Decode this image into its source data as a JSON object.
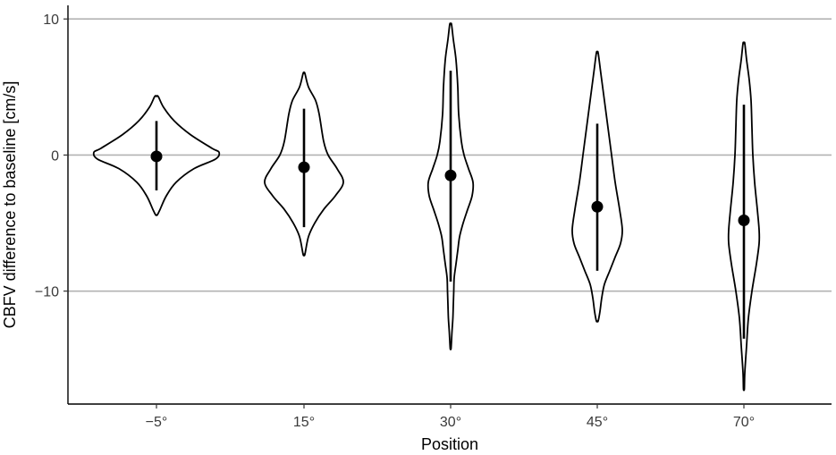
{
  "chart_data": {
    "type": "violin",
    "xlabel": "Position",
    "ylabel": "CBFV difference to baseline [cm/s]",
    "ylim": [
      -18.3,
      11
    ],
    "y_ticks": [
      10,
      0,
      -10
    ],
    "y_tick_labels": [
      "10",
      "0",
      "−10"
    ],
    "grid": "horizontal major",
    "categories": [
      "−5°",
      "15°",
      "30°",
      "45°",
      "70°"
    ],
    "summary": [
      {
        "category": "−5°",
        "mean": -0.1,
        "lower": -2.6,
        "upper": 2.5
      },
      {
        "category": "15°",
        "mean": -0.9,
        "lower": -5.3,
        "upper": 3.4
      },
      {
        "category": "30°",
        "mean": -1.5,
        "lower": -9.3,
        "upper": 6.2
      },
      {
        "category": "45°",
        "mean": -3.8,
        "lower": -8.5,
        "upper": 2.3
      },
      {
        "category": "70°",
        "mean": -4.8,
        "lower": -13.5,
        "upper": 3.7
      }
    ],
    "violins": [
      {
        "category": "−5°",
        "ymin": -4.4,
        "ymax": 4.3,
        "profile": [
          [
            4.3,
            0.02
          ],
          [
            3.5,
            0.08
          ],
          [
            2.5,
            0.2
          ],
          [
            1.5,
            0.38
          ],
          [
            0.5,
            0.62
          ],
          [
            0.2,
            0.7
          ],
          [
            -0.3,
            0.66
          ],
          [
            -1.0,
            0.42
          ],
          [
            -2.0,
            0.22
          ],
          [
            -3.0,
            0.11
          ],
          [
            -4.0,
            0.04
          ],
          [
            -4.4,
            0.01
          ]
        ]
      },
      {
        "category": "15°",
        "ymin": -7.3,
        "ymax": 6.0,
        "profile": [
          [
            6.0,
            0.01
          ],
          [
            5.0,
            0.05
          ],
          [
            4.0,
            0.13
          ],
          [
            3.0,
            0.17
          ],
          [
            1.0,
            0.22
          ],
          [
            0.0,
            0.27
          ],
          [
            -1.0,
            0.37
          ],
          [
            -2.0,
            0.44
          ],
          [
            -3.0,
            0.35
          ],
          [
            -4.0,
            0.22
          ],
          [
            -5.0,
            0.12
          ],
          [
            -6.0,
            0.05
          ],
          [
            -7.3,
            0.01
          ]
        ]
      },
      {
        "category": "30°",
        "ymin": -14.2,
        "ymax": 9.6,
        "profile": [
          [
            9.6,
            0.01
          ],
          [
            8.5,
            0.03
          ],
          [
            7.0,
            0.06
          ],
          [
            5.0,
            0.08
          ],
          [
            3.0,
            0.09
          ],
          [
            1.0,
            0.12
          ],
          [
            0.0,
            0.15
          ],
          [
            -1.0,
            0.2
          ],
          [
            -2.0,
            0.25
          ],
          [
            -3.0,
            0.24
          ],
          [
            -4.0,
            0.19
          ],
          [
            -5.0,
            0.14
          ],
          [
            -6.0,
            0.1
          ],
          [
            -7.0,
            0.08
          ],
          [
            -8.0,
            0.06
          ],
          [
            -9.0,
            0.04
          ],
          [
            -10.0,
            0.035
          ],
          [
            -11.0,
            0.03
          ],
          [
            -12.0,
            0.025
          ],
          [
            -13.0,
            0.015
          ],
          [
            -14.2,
            0.005
          ]
        ]
      },
      {
        "category": "45°",
        "ymin": -12.2,
        "ymax": 7.5,
        "profile": [
          [
            7.5,
            0.01
          ],
          [
            6.0,
            0.04
          ],
          [
            4.0,
            0.08
          ],
          [
            2.0,
            0.12
          ],
          [
            0.0,
            0.16
          ],
          [
            -2.0,
            0.2
          ],
          [
            -4.0,
            0.25
          ],
          [
            -5.5,
            0.28
          ],
          [
            -6.5,
            0.26
          ],
          [
            -7.5,
            0.2
          ],
          [
            -8.5,
            0.14
          ],
          [
            -9.5,
            0.08
          ],
          [
            -10.5,
            0.05
          ],
          [
            -11.5,
            0.03
          ],
          [
            -12.2,
            0.01
          ]
        ]
      },
      {
        "category": "70°",
        "ymin": -17.2,
        "ymax": 8.2,
        "profile": [
          [
            8.2,
            0.01
          ],
          [
            7.0,
            0.03
          ],
          [
            5.5,
            0.06
          ],
          [
            4.0,
            0.08
          ],
          [
            2.0,
            0.09
          ],
          [
            0.0,
            0.1
          ],
          [
            -2.0,
            0.12
          ],
          [
            -4.0,
            0.15
          ],
          [
            -5.5,
            0.17
          ],
          [
            -6.5,
            0.17
          ],
          [
            -8.0,
            0.14
          ],
          [
            -10.0,
            0.09
          ],
          [
            -12.0,
            0.05
          ],
          [
            -14.0,
            0.03
          ],
          [
            -16.0,
            0.01
          ],
          [
            -17.2,
            0.005
          ]
        ]
      }
    ]
  }
}
